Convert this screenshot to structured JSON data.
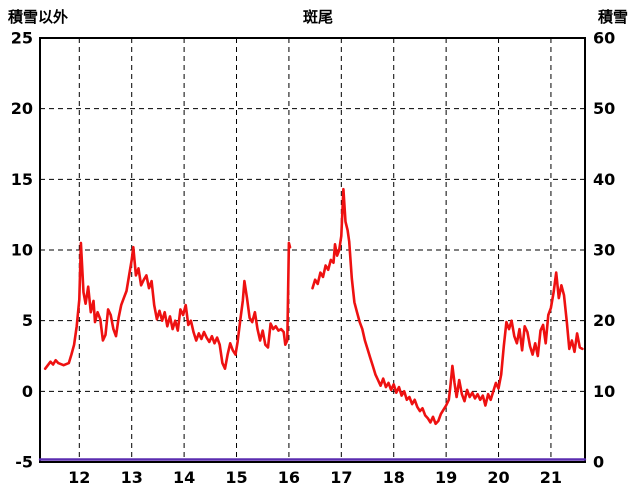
{
  "header": {
    "left_axis_title": "積雪以外",
    "chart_title": "斑尾",
    "right_axis_title": "積雪"
  },
  "chart_data": {
    "type": "line",
    "title": "斑尾",
    "grid": true,
    "left_axis": {
      "label": "積雪以外",
      "min": -5,
      "max": 25,
      "ticks": [
        -5,
        0,
        5,
        10,
        15,
        20,
        25
      ]
    },
    "right_axis": {
      "label": "積雪",
      "min": 0,
      "max": 60,
      "ticks": [
        0,
        10,
        20,
        30,
        40,
        50,
        60
      ]
    },
    "x_axis": {
      "min": 11.25,
      "max": 21.65,
      "ticks": [
        12,
        13,
        14,
        15,
        16,
        17,
        18,
        19,
        20,
        21
      ]
    },
    "series": [
      {
        "name": "積雪以外",
        "axis": "left",
        "color": "#ee1111",
        "width": 2.6,
        "segments": [
          [
            [
              11.35,
              1.6
            ],
            [
              11.45,
              2.1
            ],
            [
              11.5,
              1.9
            ],
            [
              11.55,
              2.2
            ],
            [
              11.6,
              2.0
            ],
            [
              11.7,
              1.85
            ],
            [
              11.8,
              2.0
            ],
            [
              11.85,
              2.6
            ],
            [
              11.9,
              3.3
            ],
            [
              11.95,
              4.6
            ],
            [
              12.0,
              6.5
            ],
            [
              12.03,
              10.5
            ],
            [
              12.08,
              7.0
            ],
            [
              12.12,
              6.2
            ],
            [
              12.17,
              7.4
            ],
            [
              12.22,
              5.6
            ],
            [
              12.27,
              6.4
            ],
            [
              12.3,
              4.9
            ],
            [
              12.35,
              5.6
            ],
            [
              12.4,
              5.1
            ],
            [
              12.45,
              3.6
            ],
            [
              12.5,
              4.0
            ],
            [
              12.55,
              5.8
            ],
            [
              12.6,
              5.4
            ],
            [
              12.65,
              4.4
            ],
            [
              12.7,
              3.9
            ],
            [
              12.75,
              5.2
            ],
            [
              12.8,
              6.1
            ],
            [
              12.85,
              6.6
            ],
            [
              12.9,
              7.1
            ],
            [
              12.95,
              8.2
            ],
            [
              13.0,
              9.3
            ],
            [
              13.03,
              10.2
            ],
            [
              13.08,
              8.2
            ],
            [
              13.13,
              8.7
            ],
            [
              13.18,
              7.5
            ],
            [
              13.23,
              7.9
            ],
            [
              13.28,
              8.2
            ],
            [
              13.33,
              7.3
            ],
            [
              13.38,
              7.8
            ],
            [
              13.43,
              6.1
            ],
            [
              13.48,
              5.1
            ],
            [
              13.53,
              5.7
            ],
            [
              13.58,
              5.0
            ],
            [
              13.63,
              5.6
            ],
            [
              13.68,
              4.6
            ],
            [
              13.73,
              5.3
            ],
            [
              13.78,
              4.4
            ],
            [
              13.83,
              5.0
            ],
            [
              13.88,
              4.3
            ],
            [
              13.93,
              5.8
            ],
            [
              13.98,
              5.4
            ],
            [
              14.03,
              6.1
            ],
            [
              14.08,
              4.7
            ],
            [
              14.13,
              5.0
            ],
            [
              14.18,
              4.2
            ],
            [
              14.23,
              3.6
            ],
            [
              14.28,
              4.1
            ],
            [
              14.33,
              3.7
            ],
            [
              14.38,
              4.2
            ],
            [
              14.43,
              3.8
            ],
            [
              14.48,
              3.5
            ],
            [
              14.53,
              3.9
            ],
            [
              14.58,
              3.4
            ],
            [
              14.63,
              3.8
            ],
            [
              14.68,
              3.3
            ],
            [
              14.73,
              2.0
            ],
            [
              14.78,
              1.6
            ],
            [
              14.83,
              2.6
            ],
            [
              14.88,
              3.4
            ],
            [
              14.93,
              2.9
            ],
            [
              14.98,
              2.6
            ],
            [
              15.02,
              3.5
            ],
            [
              15.07,
              5.0
            ],
            [
              15.12,
              6.4
            ],
            [
              15.15,
              7.8
            ],
            [
              15.2,
              6.6
            ],
            [
              15.25,
              5.2
            ],
            [
              15.3,
              4.9
            ],
            [
              15.35,
              5.6
            ],
            [
              15.4,
              4.4
            ],
            [
              15.45,
              3.6
            ],
            [
              15.5,
              4.3
            ],
            [
              15.55,
              3.3
            ],
            [
              15.6,
              3.1
            ],
            [
              15.65,
              4.8
            ],
            [
              15.7,
              4.4
            ],
            [
              15.75,
              4.6
            ],
            [
              15.8,
              4.3
            ],
            [
              15.85,
              4.4
            ],
            [
              15.9,
              4.2
            ],
            [
              15.93,
              3.3
            ],
            [
              15.97,
              3.6
            ],
            [
              16.0,
              10.5
            ],
            [
              16.02,
              10.2
            ]
          ],
          [
            [
              16.45,
              7.3
            ],
            [
              16.5,
              7.9
            ],
            [
              16.55,
              7.6
            ],
            [
              16.6,
              8.4
            ],
            [
              16.65,
              8.1
            ],
            [
              16.7,
              8.9
            ],
            [
              16.75,
              8.6
            ],
            [
              16.8,
              9.3
            ],
            [
              16.85,
              9.1
            ],
            [
              16.88,
              10.4
            ],
            [
              16.92,
              9.6
            ],
            [
              16.96,
              10.0
            ],
            [
              17.0,
              11.0
            ],
            [
              17.04,
              14.3
            ],
            [
              17.08,
              12.0
            ],
            [
              17.12,
              11.4
            ],
            [
              17.15,
              10.6
            ],
            [
              17.2,
              8.0
            ],
            [
              17.25,
              6.3
            ],
            [
              17.3,
              5.6
            ],
            [
              17.35,
              4.9
            ],
            [
              17.4,
              4.4
            ],
            [
              17.45,
              3.6
            ],
            [
              17.5,
              3.0
            ],
            [
              17.55,
              2.4
            ],
            [
              17.6,
              1.8
            ],
            [
              17.65,
              1.2
            ],
            [
              17.7,
              0.8
            ],
            [
              17.75,
              0.4
            ],
            [
              17.8,
              0.9
            ],
            [
              17.85,
              0.3
            ],
            [
              17.9,
              0.6
            ],
            [
              17.95,
              0.1
            ],
            [
              18.0,
              0.5
            ],
            [
              18.05,
              -0.1
            ],
            [
              18.1,
              0.3
            ],
            [
              18.15,
              -0.3
            ],
            [
              18.2,
              0.0
            ],
            [
              18.25,
              -0.6
            ],
            [
              18.3,
              -0.4
            ],
            [
              18.35,
              -0.9
            ],
            [
              18.4,
              -0.6
            ],
            [
              18.45,
              -1.1
            ],
            [
              18.5,
              -1.4
            ],
            [
              18.55,
              -1.2
            ],
            [
              18.6,
              -1.7
            ],
            [
              18.65,
              -1.9
            ],
            [
              18.7,
              -2.2
            ],
            [
              18.75,
              -1.8
            ],
            [
              18.8,
              -2.3
            ],
            [
              18.85,
              -2.1
            ],
            [
              18.9,
              -1.6
            ],
            [
              18.95,
              -1.3
            ],
            [
              19.0,
              -1.0
            ],
            [
              19.05,
              -0.6
            ],
            [
              19.08,
              0.3
            ],
            [
              19.12,
              1.8
            ],
            [
              19.16,
              0.6
            ],
            [
              19.2,
              -0.4
            ],
            [
              19.25,
              0.8
            ],
            [
              19.3,
              -0.2
            ],
            [
              19.35,
              -0.7
            ],
            [
              19.4,
              0.1
            ],
            [
              19.45,
              -0.4
            ],
            [
              19.5,
              -0.1
            ],
            [
              19.55,
              -0.5
            ],
            [
              19.6,
              -0.2
            ],
            [
              19.65,
              -0.6
            ],
            [
              19.7,
              -0.3
            ],
            [
              19.75,
              -1.0
            ],
            [
              19.8,
              -0.2
            ],
            [
              19.85,
              -0.6
            ],
            [
              19.9,
              0.0
            ],
            [
              19.95,
              0.6
            ],
            [
              20.0,
              0.2
            ],
            [
              20.05,
              1.2
            ],
            [
              20.1,
              3.2
            ],
            [
              20.15,
              4.9
            ],
            [
              20.2,
              4.4
            ],
            [
              20.25,
              5.0
            ],
            [
              20.3,
              3.9
            ],
            [
              20.35,
              3.4
            ],
            [
              20.4,
              4.4
            ],
            [
              20.45,
              2.9
            ],
            [
              20.5,
              4.6
            ],
            [
              20.55,
              4.2
            ],
            [
              20.6,
              3.2
            ],
            [
              20.65,
              2.6
            ],
            [
              20.7,
              3.4
            ],
            [
              20.75,
              2.5
            ],
            [
              20.8,
              4.3
            ],
            [
              20.85,
              4.7
            ],
            [
              20.9,
              3.4
            ],
            [
              20.95,
              5.4
            ],
            [
              21.0,
              5.9
            ],
            [
              21.05,
              7.0
            ],
            [
              21.1,
              8.4
            ],
            [
              21.15,
              6.6
            ],
            [
              21.2,
              7.5
            ],
            [
              21.25,
              6.8
            ],
            [
              21.3,
              5.0
            ],
            [
              21.35,
              3.0
            ],
            [
              21.4,
              3.6
            ],
            [
              21.45,
              2.8
            ],
            [
              21.5,
              4.1
            ],
            [
              21.55,
              3.1
            ],
            [
              21.6,
              3.0
            ]
          ]
        ]
      },
      {
        "name": "積雪",
        "axis": "right",
        "color": "#5b2db0",
        "width": 2.4,
        "segments": [
          [
            [
              11.25,
              0
            ],
            [
              21.65,
              0
            ]
          ]
        ]
      }
    ],
    "style": {
      "border_color": "#000000",
      "grid_color": "#000000",
      "grid_dash": "5,4",
      "tick_font_size": 16,
      "background": "#ffffff"
    }
  }
}
